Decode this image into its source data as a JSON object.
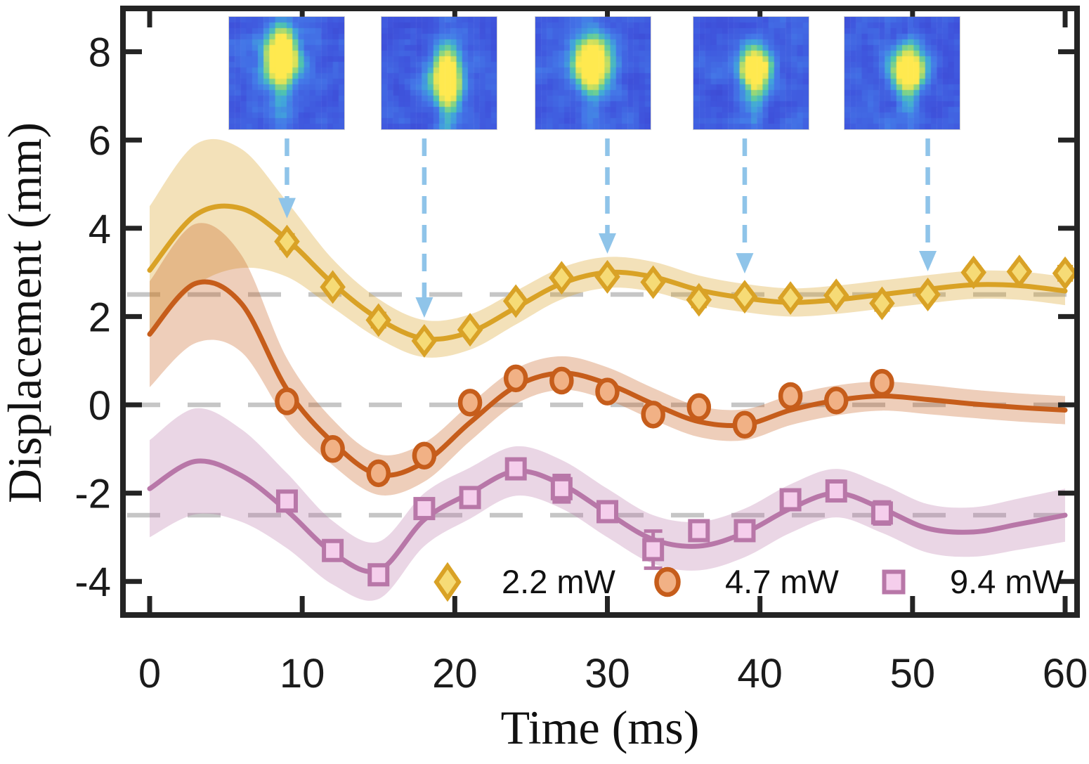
{
  "chart_data": {
    "type": "line",
    "title": "",
    "xlabel": "Time (ms)",
    "ylabel": "Displacement (mm)",
    "xlim": [
      0,
      60
    ],
    "ylim": [
      -4.8,
      9.0
    ],
    "x_ticks": [
      0,
      10,
      20,
      30,
      40,
      50,
      60
    ],
    "y_ticks": [
      8,
      6,
      4,
      2,
      0,
      -2,
      -4
    ],
    "grid": "off",
    "baselines": {
      "values": [
        2.5,
        0,
        -2.5
      ],
      "color": "#c6c6c6",
      "style": "dashed"
    },
    "legend_position": "bottom-inside",
    "series": [
      {
        "name": "2.2 mW",
        "marker": "diamond",
        "line_color": "#D9A226",
        "marker_fill": "#F6DB76",
        "band_color": "rgba(217,162,38,0.32)",
        "points": {
          "t": [
            9,
            12,
            15,
            18,
            21,
            24,
            27,
            30,
            33,
            36,
            39,
            42,
            45,
            48,
            51,
            54,
            57,
            60
          ],
          "y": [
            3.7,
            2.67,
            1.92,
            1.45,
            1.7,
            2.35,
            2.88,
            2.9,
            2.78,
            2.38,
            2.45,
            2.42,
            2.48,
            2.3,
            2.5,
            3.0,
            3.02,
            2.98
          ],
          "err": [
            0.15,
            0.12,
            0.15,
            0.12,
            0.12,
            0.12,
            0.12,
            0.12,
            0.12,
            0.15,
            0.12,
            0.12,
            0.12,
            0.15,
            0.12,
            0.12,
            0.12,
            0.15
          ]
        },
        "curve": {
          "t": [
            0,
            3,
            6,
            9,
            12,
            15,
            18,
            21,
            24,
            27,
            30,
            33,
            36,
            39,
            42,
            45,
            48,
            51,
            54,
            57,
            60
          ],
          "y": [
            3.05,
            4.3,
            4.45,
            3.75,
            2.75,
            1.95,
            1.5,
            1.65,
            2.2,
            2.75,
            3.0,
            2.9,
            2.6,
            2.42,
            2.32,
            2.38,
            2.5,
            2.62,
            2.72,
            2.7,
            2.58
          ],
          "band_halfwidth": [
            1.45,
            1.6,
            1.35,
            0.85,
            0.55,
            0.45,
            0.42,
            0.4,
            0.38,
            0.36,
            0.35,
            0.34,
            0.33,
            0.32,
            0.32,
            0.32,
            0.32,
            0.32,
            0.32,
            0.32,
            0.32
          ]
        }
      },
      {
        "name": "4.7 mW",
        "marker": "circle",
        "line_color": "#C65D1B",
        "marker_fill": "#F1B185",
        "band_color": "rgba(198,93,27,0.30)",
        "points": {
          "t": [
            9,
            12,
            15,
            18,
            21,
            24,
            27,
            30,
            33,
            36,
            39,
            42,
            45,
            48
          ],
          "y": [
            0.08,
            -1.0,
            -1.55,
            -1.15,
            0.05,
            0.6,
            0.55,
            0.3,
            -0.22,
            -0.05,
            -0.45,
            0.2,
            0.1,
            0.5
          ],
          "err": [
            0.15,
            0.12,
            0.18,
            0.12,
            0.12,
            0.12,
            0.15,
            0.15,
            0.12,
            0.15,
            0.12,
            0.15,
            0.15,
            0.12
          ]
        },
        "curve": {
          "t": [
            0,
            3,
            6,
            9,
            12,
            15,
            18,
            21,
            24,
            27,
            30,
            33,
            36,
            39,
            42,
            45,
            48,
            51,
            54,
            57,
            60
          ],
          "y": [
            1.6,
            2.75,
            2.3,
            0.35,
            -0.85,
            -1.58,
            -1.3,
            -0.4,
            0.42,
            0.72,
            0.48,
            0.02,
            -0.38,
            -0.45,
            -0.12,
            0.1,
            0.2,
            0.12,
            0.02,
            -0.06,
            -0.12
          ],
          "band_halfwidth": [
            1.2,
            1.35,
            1.1,
            0.7,
            0.52,
            0.46,
            0.44,
            0.42,
            0.4,
            0.38,
            0.37,
            0.36,
            0.35,
            0.35,
            0.34,
            0.34,
            0.33,
            0.33,
            0.32,
            0.32,
            0.32
          ]
        }
      },
      {
        "name": "9.4 mW",
        "marker": "square",
        "line_color": "#B877A8",
        "marker_fill": "#F5CEEC",
        "band_color": "rgba(184,119,168,0.30)",
        "points": {
          "t": [
            9,
            12,
            15,
            18,
            21,
            24,
            27,
            30,
            33,
            36,
            39,
            42,
            45,
            48
          ],
          "y": [
            -2.18,
            -3.3,
            -3.85,
            -2.35,
            -2.1,
            -1.45,
            -1.9,
            -2.42,
            -3.28,
            -2.85,
            -2.85,
            -2.15,
            -1.95,
            -2.45
          ],
          "err": [
            0.15,
            0.2,
            0.12,
            0.12,
            0.12,
            0.22,
            0.3,
            0.12,
            0.42,
            0.15,
            0.12,
            0.12,
            0.12,
            0.25
          ]
        },
        "curve": {
          "t": [
            0,
            3,
            6,
            9,
            12,
            15,
            18,
            21,
            24,
            27,
            30,
            33,
            36,
            39,
            42,
            45,
            48,
            51,
            54,
            57,
            60
          ],
          "y": [
            -1.9,
            -1.28,
            -1.6,
            -2.4,
            -3.35,
            -3.75,
            -2.6,
            -2.0,
            -1.5,
            -1.8,
            -2.45,
            -3.05,
            -3.2,
            -2.9,
            -2.35,
            -2.0,
            -2.35,
            -2.8,
            -2.88,
            -2.7,
            -2.5
          ],
          "band_halfwidth": [
            1.1,
            1.2,
            1.05,
            0.85,
            0.72,
            0.65,
            0.6,
            0.58,
            0.56,
            0.55,
            0.55,
            0.55,
            0.55,
            0.55,
            0.55,
            0.55,
            0.55,
            0.55,
            0.56,
            0.58,
            0.6
          ]
        }
      }
    ],
    "arrows": {
      "times": [
        9,
        18,
        30,
        39,
        51
      ],
      "color": "#8FC4E9",
      "style": "dashed-down"
    },
    "insets": [
      {
        "name": "inset-1",
        "time": 9,
        "blob": {
          "cx": 0.46,
          "cy": 0.36,
          "sx": 0.11,
          "sy": 0.16
        },
        "seed": 7
      },
      {
        "name": "inset-2",
        "time": 18,
        "blob": {
          "cx": 0.57,
          "cy": 0.55,
          "sx": 0.1,
          "sy": 0.15
        },
        "seed": 13
      },
      {
        "name": "inset-3",
        "time": 30,
        "blob": {
          "cx": 0.49,
          "cy": 0.4,
          "sx": 0.12,
          "sy": 0.15
        },
        "seed": 21
      },
      {
        "name": "inset-4",
        "time": 39,
        "blob": {
          "cx": 0.54,
          "cy": 0.46,
          "sx": 0.1,
          "sy": 0.12
        },
        "seed": 29
      },
      {
        "name": "inset-5",
        "time": 51,
        "blob": {
          "cx": 0.56,
          "cy": 0.47,
          "sx": 0.11,
          "sy": 0.12
        },
        "seed": 35
      }
    ],
    "inset_colormap": [
      [
        0.0,
        "#3a3ec9"
      ],
      [
        0.22,
        "#3f55dd"
      ],
      [
        0.38,
        "#4479e8"
      ],
      [
        0.52,
        "#41a7da"
      ],
      [
        0.64,
        "#52c7a9"
      ],
      [
        0.75,
        "#8fd67d"
      ],
      [
        0.86,
        "#ccdf5e"
      ],
      [
        1.0,
        "#ffe94f"
      ]
    ],
    "axis_color": "#242424"
  }
}
